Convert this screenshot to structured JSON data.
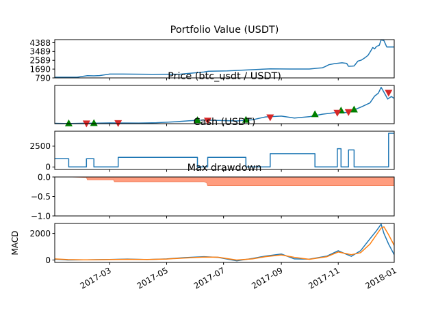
{
  "chart_data": [
    {
      "type": "line",
      "title": "Portfolio Value (USDT)",
      "ylabel": "",
      "ylim": [
        790,
        4700
      ],
      "yticks": [
        790,
        1690,
        2589,
        3489,
        4388
      ],
      "ytick_labels": [
        "790",
        "1690",
        "2589",
        "3489",
        "4388"
      ],
      "line_color": "#1f77b4",
      "series": [
        {
          "x": [
            "2017-01-01",
            "2017-01-15",
            "2017-01-25",
            "2017-02-05",
            "2017-02-12",
            "2017-02-18",
            "2017-03-01",
            "2017-03-15",
            "2017-04-15",
            "2017-05-15",
            "2017-06-10",
            "2017-06-15",
            "2017-07-05",
            "2017-07-20",
            "2017-08-05",
            "2017-08-20",
            "2017-09-10",
            "2017-10-01",
            "2017-10-10",
            "2017-10-15",
            "2017-10-18",
            "2017-10-22",
            "2017-10-28",
            "2017-11-05",
            "2017-11-10",
            "2017-11-12",
            "2017-11-16",
            "2017-11-18",
            "2017-11-22",
            "2017-11-26",
            "2017-11-30",
            "2017-12-03",
            "2017-12-06",
            "2017-12-08",
            "2017-12-10",
            "2017-12-12",
            "2017-12-15",
            "2017-12-17",
            "2017-12-20",
            "2017-12-23",
            "2017-12-26",
            "2017-12-31"
          ],
          "y": [
            860,
            860,
            860,
            1020,
            1000,
            1030,
            1180,
            1180,
            1160,
            1170,
            1390,
            1470,
            1500,
            1570,
            1650,
            1720,
            1700,
            1700,
            1790,
            1820,
            1950,
            2140,
            2250,
            2330,
            2280,
            1980,
            1990,
            2010,
            2500,
            2620,
            2880,
            3100,
            3560,
            3900,
            3750,
            4000,
            4130,
            4680,
            4600,
            3950,
            3950,
            3950
          ]
        }
      ]
    },
    {
      "type": "line",
      "title": "Price (btc_usdt / USDT)",
      "ylim": [
        800,
        20500
      ],
      "line_color": "#1f77b4",
      "series": [
        {
          "x": [
            "2017-01-01",
            "2017-01-15",
            "2017-02-01",
            "2017-02-15",
            "2017-03-01",
            "2017-03-15",
            "2017-04-01",
            "2017-04-20",
            "2017-05-10",
            "2017-05-25",
            "2017-06-10",
            "2017-06-25",
            "2017-07-15",
            "2017-08-01",
            "2017-08-15",
            "2017-09-01",
            "2017-09-15",
            "2017-10-01",
            "2017-10-15",
            "2017-11-01",
            "2017-11-10",
            "2017-11-15",
            "2017-11-26",
            "2017-12-05",
            "2017-12-10",
            "2017-12-14",
            "2017-12-17",
            "2017-12-20",
            "2017-12-24",
            "2017-12-28",
            "2017-12-31"
          ],
          "y": [
            980,
            850,
            1000,
            1050,
            1200,
            1150,
            1100,
            1300,
            1800,
            2300,
            2700,
            2500,
            2200,
            2800,
            4300,
            4700,
            3700,
            4400,
            5700,
            6700,
            6500,
            7300,
            9500,
            11500,
            15000,
            16500,
            19500,
            17000,
            13500,
            14800,
            13800
          ]
        }
      ],
      "buy_markers_x": [
        "2017-01-16",
        "2017-02-12",
        "2017-06-03",
        "2017-07-25",
        "2017-10-07",
        "2017-11-04",
        "2017-11-18"
      ],
      "buy_markers_y": [
        880,
        1000,
        2500,
        2700,
        5600,
        7500,
        8000
      ],
      "sell_markers_x": [
        "2017-02-04",
        "2017-03-10",
        "2017-06-14",
        "2017-08-20",
        "2017-10-31",
        "2017-11-12",
        "2017-12-25"
      ],
      "sell_markers_y": [
        1020,
        1200,
        2450,
        4150,
        6500,
        6850,
        16800
      ],
      "buy_color": "#008000",
      "sell_color": "#d62728"
    },
    {
      "type": "line",
      "title": "Cash (USDT)",
      "ylim": [
        -300,
        4300
      ],
      "yticks": [
        0,
        2500
      ],
      "ytick_labels": [
        "0",
        "2500"
      ],
      "line_color": "#1f77b4",
      "series": [
        {
          "x": [
            "2017-01-01",
            "2017-01-16",
            "2017-01-16",
            "2017-02-04",
            "2017-02-04",
            "2017-02-12",
            "2017-02-12",
            "2017-03-10",
            "2017-03-10",
            "2017-06-03",
            "2017-06-03",
            "2017-06-14",
            "2017-06-14",
            "2017-07-25",
            "2017-07-25",
            "2017-08-20",
            "2017-08-20",
            "2017-10-07",
            "2017-10-07",
            "2017-10-31",
            "2017-10-31",
            "2017-11-04",
            "2017-11-04",
            "2017-11-12",
            "2017-11-12",
            "2017-11-18",
            "2017-11-18",
            "2017-12-25",
            "2017-12-25",
            "2017-12-31"
          ],
          "y": [
            1000,
            1000,
            0,
            0,
            1000,
            1000,
            0,
            0,
            1150,
            1150,
            0,
            0,
            1150,
            1150,
            0,
            0,
            1600,
            1600,
            0,
            0,
            2200,
            2200,
            0,
            0,
            2050,
            2050,
            0,
            0,
            4050,
            4050
          ]
        }
      ]
    },
    {
      "type": "area",
      "title": "Max drawdown",
      "ylim": [
        -1.0,
        0.0
      ],
      "yticks": [
        0.0,
        -0.5,
        -1.0
      ],
      "ytick_labels": [
        "0.0",
        "−0.5",
        "−1.0"
      ],
      "fill_color": "#ff9d7f",
      "line_color": "#f4845f",
      "series": [
        {
          "x": [
            "2017-01-01",
            "2017-01-20",
            "2017-02-04",
            "2017-02-05",
            "2017-03-05",
            "2017-03-06",
            "2017-06-10",
            "2017-06-13",
            "2017-06-14",
            "2017-12-31"
          ],
          "y": [
            0,
            0,
            -0.01,
            -0.07,
            -0.07,
            -0.12,
            -0.12,
            -0.15,
            -0.22,
            -0.22
          ]
        }
      ]
    },
    {
      "type": "line",
      "title": "",
      "ylabel": "MACD",
      "ylim": [
        -180,
        2750
      ],
      "yticks": [
        0,
        2000
      ],
      "ytick_labels": [
        "0",
        "2000"
      ],
      "xticks": [
        "2017-03-01",
        "2017-05-01",
        "2017-07-01",
        "2017-09-01",
        "2017-11-01",
        "2018-01-01"
      ],
      "xtick_labels": [
        "2017-03",
        "2017-05",
        "2017-07",
        "2017-09",
        "2017-11",
        "2018-01"
      ],
      "series": [
        {
          "color": "#1f77b4",
          "x": [
            "2017-01-01",
            "2017-01-15",
            "2017-02-01",
            "2017-03-01",
            "2017-03-20",
            "2017-04-10",
            "2017-05-01",
            "2017-05-20",
            "2017-06-10",
            "2017-06-25",
            "2017-07-15",
            "2017-08-01",
            "2017-08-15",
            "2017-09-01",
            "2017-09-15",
            "2017-10-01",
            "2017-10-20",
            "2017-11-01",
            "2017-11-15",
            "2017-11-25",
            "2017-12-05",
            "2017-12-12",
            "2017-12-17",
            "2017-12-20",
            "2017-12-25",
            "2017-12-31"
          ],
          "y": [
            60,
            0,
            10,
            40,
            70,
            30,
            80,
            180,
            250,
            200,
            -60,
            120,
            300,
            450,
            80,
            60,
            300,
            700,
            280,
            700,
            1600,
            2200,
            2700,
            2000,
            1200,
            400
          ]
        },
        {
          "color": "#ff7f0e",
          "x": [
            "2017-01-01",
            "2017-01-15",
            "2017-02-01",
            "2017-03-01",
            "2017-03-20",
            "2017-04-10",
            "2017-05-01",
            "2017-05-20",
            "2017-06-10",
            "2017-06-25",
            "2017-07-15",
            "2017-08-01",
            "2017-08-15",
            "2017-09-01",
            "2017-09-15",
            "2017-10-01",
            "2017-10-20",
            "2017-11-01",
            "2017-11-15",
            "2017-11-25",
            "2017-12-05",
            "2017-12-12",
            "2017-12-17",
            "2017-12-20",
            "2017-12-25",
            "2017-12-31"
          ],
          "y": [
            80,
            30,
            10,
            30,
            50,
            40,
            70,
            150,
            220,
            210,
            0,
            80,
            250,
            380,
            200,
            50,
            250,
            600,
            400,
            550,
            1200,
            1900,
            2400,
            2500,
            1900,
            1100
          ]
        }
      ]
    }
  ],
  "x_domain": [
    "2017-01-01",
    "2017-12-31"
  ]
}
